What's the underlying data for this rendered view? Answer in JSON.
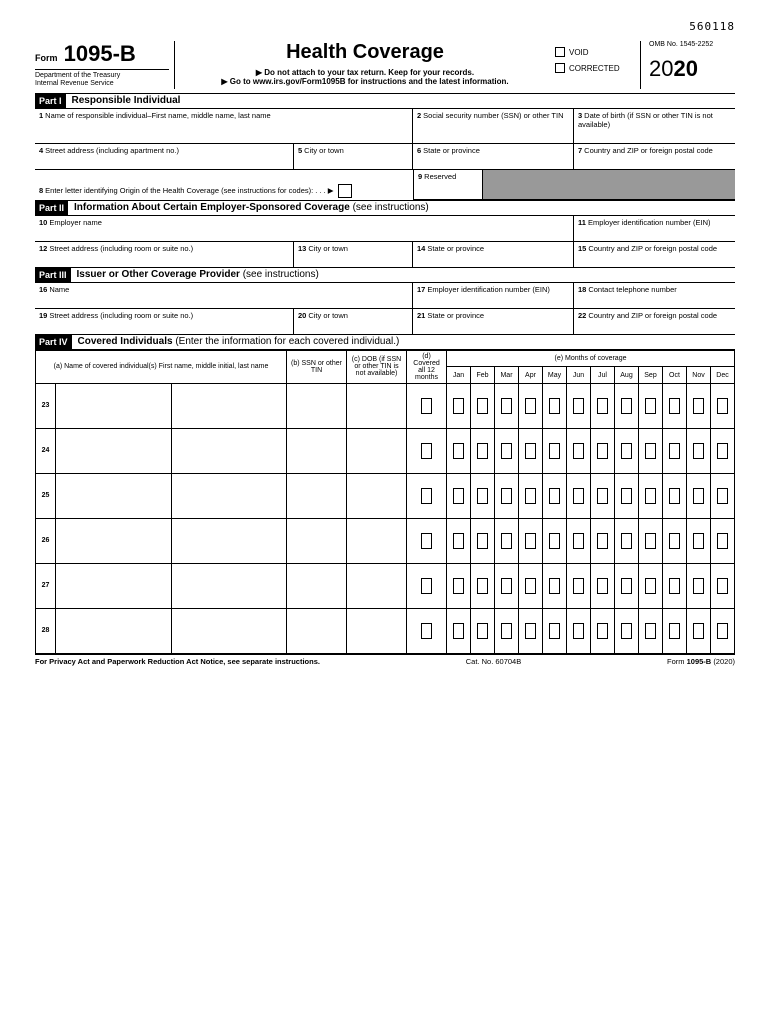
{
  "top_code": "560118",
  "form": {
    "prefix": "Form",
    "number": "1095-B",
    "dept1": "Department of the Treasury",
    "dept2": "Internal Revenue Service"
  },
  "header": {
    "title": "Health Coverage",
    "sub1": "▶ Do not attach to your tax return. Keep for your records.",
    "sub2": "▶ Go to www.irs.gov/Form1095B for instructions and the latest information."
  },
  "checks": {
    "void": "VOID",
    "corrected": "CORRECTED"
  },
  "omb": "OMB No. 1545-2252",
  "year_prefix": "20",
  "year_suffix": "20",
  "part1": {
    "bar": "Part I",
    "title": "Responsible Individual"
  },
  "f1": "Name of responsible individual–First name, middle name, last name",
  "f2": "Social security number (SSN) or other TIN",
  "f3": "Date of birth (if SSN or other TIN is not available)",
  "f4": "Street address (including apartment no.)",
  "f5": "City or town",
  "f6": "State or province",
  "f7": "Country and ZIP or foreign postal code",
  "f8": "Enter letter identifying Origin of the Health Coverage (see instructions for codes): . . . ▶",
  "f9": "Reserved",
  "part2": {
    "bar": "Part II",
    "title": "Information About Certain Employer-Sponsored Coverage ",
    "sub": "(see instructions)"
  },
  "f10": "Employer name",
  "f11": "Employer identification number (EIN)",
  "f12": "Street address (including room or suite no.)",
  "f13": "City or town",
  "f14": "State or province",
  "f15": "Country and ZIP or foreign postal code",
  "part3": {
    "bar": "Part III",
    "title": "Issuer or Other Coverage Provider ",
    "sub": "(see instructions)"
  },
  "f16": "Name",
  "f17": "Employer identification number (EIN)",
  "f18": "Contact telephone number",
  "f19": "Street address (including room or suite no.)",
  "f20": "City or town",
  "f21": "State or province",
  "f22": "Country and ZIP or foreign postal code",
  "part4": {
    "bar": "Part IV",
    "title": "Covered Individuals ",
    "sub": "(Enter the information for each covered individual.)"
  },
  "col_a": "(a) Name of covered individual(s) First name, middle initial, last name",
  "col_b": "(b) SSN or other TIN",
  "col_c": "(c) DOB (if SSN or other TIN is not available)",
  "col_d": "(d) Covered all 12 months",
  "col_e": "(e) Months of coverage",
  "months": [
    "Jan",
    "Feb",
    "Mar",
    "Apr",
    "May",
    "Jun",
    "Jul",
    "Aug",
    "Sep",
    "Oct",
    "Nov",
    "Dec"
  ],
  "rows": [
    "23",
    "24",
    "25",
    "26",
    "27",
    "28"
  ],
  "footer": {
    "left": "For Privacy Act and Paperwork Reduction Act Notice, see separate instructions.",
    "mid": "Cat. No. 60704B",
    "right_form": "Form ",
    "right_num": "1095-B ",
    "right_year": "(2020)"
  }
}
